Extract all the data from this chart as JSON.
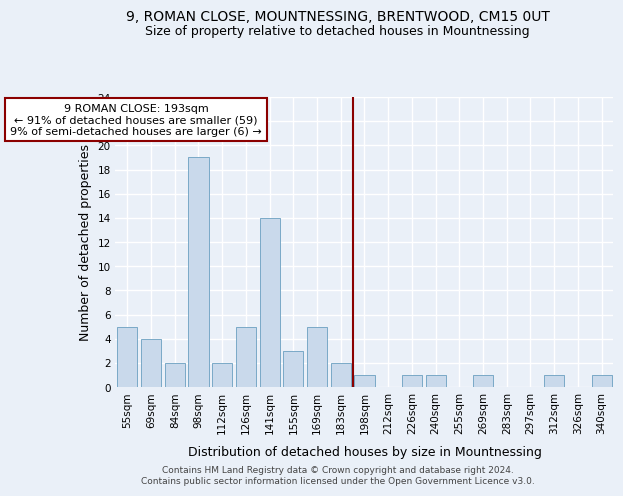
{
  "title": "9, ROMAN CLOSE, MOUNTNESSING, BRENTWOOD, CM15 0UT",
  "subtitle": "Size of property relative to detached houses in Mountnessing",
  "xlabel": "Distribution of detached houses by size in Mountnessing",
  "ylabel": "Number of detached properties",
  "categories": [
    "55sqm",
    "69sqm",
    "84sqm",
    "98sqm",
    "112sqm",
    "126sqm",
    "141sqm",
    "155sqm",
    "169sqm",
    "183sqm",
    "198sqm",
    "212sqm",
    "226sqm",
    "240sqm",
    "255sqm",
    "269sqm",
    "283sqm",
    "297sqm",
    "312sqm",
    "326sqm",
    "340sqm"
  ],
  "values": [
    5,
    4,
    2,
    19,
    2,
    5,
    14,
    3,
    5,
    2,
    1,
    0,
    1,
    1,
    0,
    1,
    0,
    0,
    1,
    0,
    1
  ],
  "bar_color": "#c9d9eb",
  "bar_edge_color": "#6a9fc0",
  "ylim": [
    0,
    24
  ],
  "yticks": [
    0,
    2,
    4,
    6,
    8,
    10,
    12,
    14,
    16,
    18,
    20,
    22,
    24
  ],
  "vline_color": "#8b0000",
  "annotation_title": "9 ROMAN CLOSE: 193sqm",
  "annotation_line1": "← 91% of detached houses are smaller (59)",
  "annotation_line2": "9% of semi-detached houses are larger (6) →",
  "annotation_box_color": "#8b0000",
  "footer1": "Contains HM Land Registry data © Crown copyright and database right 2024.",
  "footer2": "Contains public sector information licensed under the Open Government Licence v3.0.",
  "background_color": "#eaf0f8",
  "grid_color": "#ffffff",
  "title_fontsize": 10,
  "subtitle_fontsize": 9,
  "xlabel_fontsize": 9,
  "ylabel_fontsize": 9,
  "tick_fontsize": 7.5,
  "footer_fontsize": 6.5
}
